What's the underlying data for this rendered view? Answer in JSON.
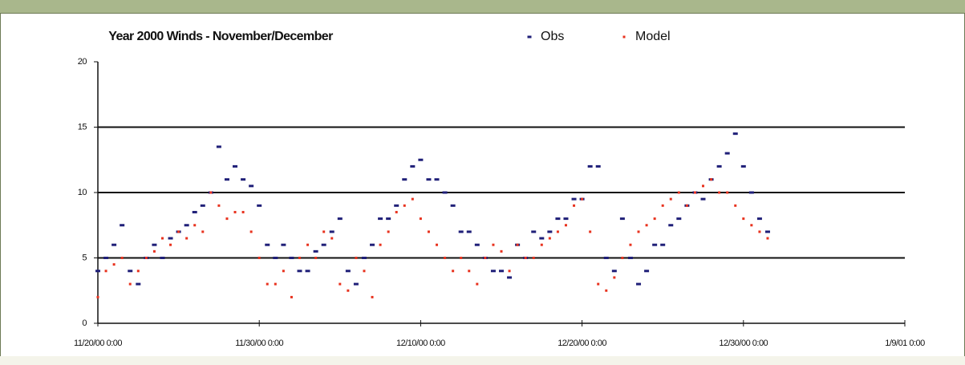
{
  "chart_data": {
    "type": "scatter",
    "title": "Year 2000 Winds - November/December",
    "x": [
      "2000-11-20T00:00",
      "2000-11-20T12:00",
      "2000-11-21T00:00",
      "2000-11-21T12:00",
      "2000-11-22T00:00",
      "2000-11-22T12:00",
      "2000-11-23T00:00",
      "2000-11-23T12:00",
      "2000-11-24T00:00",
      "2000-11-24T12:00",
      "2000-11-25T00:00",
      "2000-11-25T12:00",
      "2000-11-26T00:00",
      "2000-11-26T12:00",
      "2000-11-27T00:00",
      "2000-11-27T12:00",
      "2000-11-28T00:00",
      "2000-11-28T12:00",
      "2000-11-29T00:00",
      "2000-11-29T12:00",
      "2000-11-30T00:00",
      "2000-11-30T12:00",
      "2000-12-01T00:00",
      "2000-12-01T12:00",
      "2000-12-02T00:00",
      "2000-12-02T12:00",
      "2000-12-03T00:00",
      "2000-12-03T12:00",
      "2000-12-04T00:00",
      "2000-12-04T12:00",
      "2000-12-05T00:00",
      "2000-12-05T12:00",
      "2000-12-06T00:00",
      "2000-12-06T12:00",
      "2000-12-07T00:00",
      "2000-12-07T12:00",
      "2000-12-08T00:00",
      "2000-12-08T12:00",
      "2000-12-09T00:00",
      "2000-12-09T12:00",
      "2000-12-10T00:00",
      "2000-12-10T12:00",
      "2000-12-11T00:00",
      "2000-12-11T12:00",
      "2000-12-12T00:00",
      "2000-12-12T12:00",
      "2000-12-13T00:00",
      "2000-12-13T12:00",
      "2000-12-14T00:00",
      "2000-12-14T12:00",
      "2000-12-15T00:00",
      "2000-12-15T12:00",
      "2000-12-16T00:00",
      "2000-12-16T12:00",
      "2000-12-17T00:00",
      "2000-12-17T12:00",
      "2000-12-18T00:00",
      "2000-12-18T12:00",
      "2000-12-19T00:00",
      "2000-12-19T12:00",
      "2000-12-20T00:00",
      "2000-12-20T12:00",
      "2000-12-21T00:00",
      "2000-12-21T12:00",
      "2000-12-22T00:00",
      "2000-12-22T12:00",
      "2000-12-23T00:00",
      "2000-12-23T12:00",
      "2000-12-24T00:00",
      "2000-12-24T12:00",
      "2000-12-25T00:00",
      "2000-12-25T12:00",
      "2000-12-26T00:00",
      "2000-12-26T12:00",
      "2000-12-27T00:00",
      "2000-12-27T12:00",
      "2000-12-28T00:00",
      "2000-12-28T12:00",
      "2000-12-29T00:00",
      "2000-12-29T12:00",
      "2000-12-30T00:00",
      "2000-12-30T12:00",
      "2000-12-31T00:00",
      "2000-12-31T12:00"
    ],
    "series": [
      {
        "name": "Obs",
        "color": "#1f1f78",
        "values": [
          4,
          5,
          6,
          7.5,
          4,
          3,
          5,
          6,
          5,
          6.5,
          7,
          7.5,
          8.5,
          9,
          10,
          13.5,
          11,
          12,
          11,
          10.5,
          9,
          6,
          5,
          6,
          5,
          4,
          4,
          5.5,
          6,
          7,
          8,
          4,
          3,
          5,
          6,
          8,
          8,
          9,
          11,
          12,
          12.5,
          11,
          11,
          10,
          9,
          7,
          7,
          6,
          5,
          4,
          4,
          3.5,
          6,
          5,
          7,
          6.5,
          7,
          8,
          8,
          9.5,
          9.5,
          12,
          12,
          5,
          4,
          8,
          5,
          3,
          4,
          6,
          6,
          7.5,
          8,
          9,
          10,
          9.5,
          11,
          12,
          13,
          14.5,
          12,
          10,
          8,
          7
        ]
      },
      {
        "name": "Model",
        "color": "#e8321e",
        "values": [
          2,
          4,
          4.5,
          5,
          3,
          4,
          5,
          5.5,
          6.5,
          6,
          7,
          6.5,
          7.5,
          7,
          10,
          9,
          8,
          8.5,
          8.5,
          7,
          5,
          3,
          3,
          4,
          2,
          5,
          6,
          5,
          7,
          6.5,
          3,
          2.5,
          5,
          4,
          2,
          6,
          7,
          8.5,
          9,
          9.5,
          8,
          7,
          6,
          5,
          4,
          5,
          4,
          3,
          5,
          6,
          5.5,
          4,
          6,
          5,
          5,
          6,
          6.5,
          7,
          7.5,
          9,
          9.5,
          7,
          3,
          2.5,
          3.5,
          5,
          6,
          7,
          7.5,
          8,
          9,
          9.5,
          10,
          9,
          10,
          10.5,
          11,
          10,
          10,
          9,
          8,
          7.5,
          7,
          6.5
        ]
      }
    ],
    "xlim": [
      "2000-11-20T00:00",
      "2001-01-09T00:00"
    ],
    "xticks": [
      {
        "value": "2000-11-20T00:00",
        "label": "11/20/00 0:00"
      },
      {
        "value": "2000-11-30T00:00",
        "label": "11/30/00 0:00"
      },
      {
        "value": "2000-12-10T00:00",
        "label": "12/10/00 0:00"
      },
      {
        "value": "2000-12-20T00:00",
        "label": "12/20/00 0:00"
      },
      {
        "value": "2000-12-30T00:00",
        "label": "12/30/00 0:00"
      },
      {
        "value": "2001-01-09T00:00",
        "label": "1/9/01 0:00"
      }
    ],
    "ylim": [
      0,
      20
    ],
    "yticks": [
      0,
      5,
      10,
      15,
      20
    ],
    "grid": true
  }
}
